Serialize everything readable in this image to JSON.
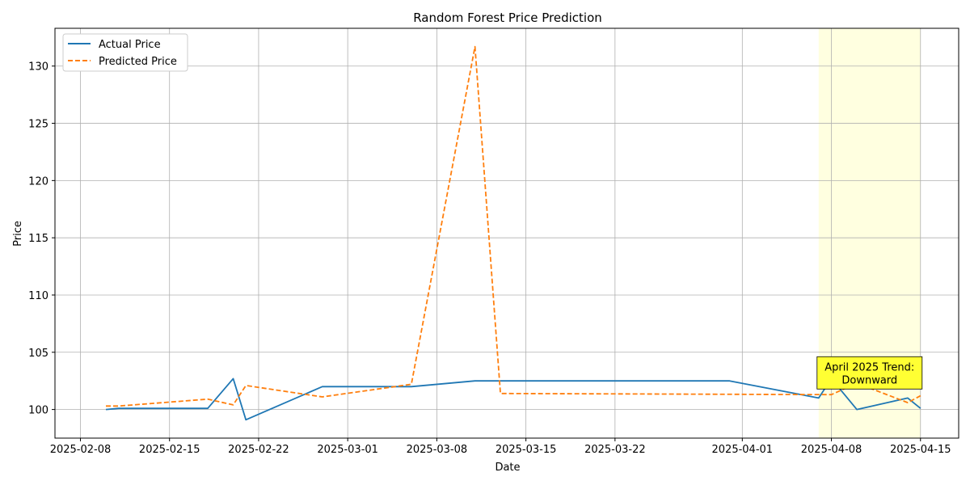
{
  "chart_data": {
    "type": "line",
    "title": "Random Forest Price Prediction",
    "xlabel": "Date",
    "ylabel": "Price",
    "x_ticks": [
      "2025-02-08",
      "2025-02-15",
      "2025-02-22",
      "2025-03-01",
      "2025-03-08",
      "2025-03-15",
      "2025-03-22",
      "2025-04-01",
      "2025-04-08",
      "2025-04-15"
    ],
    "y_ticks": [
      100,
      105,
      110,
      115,
      120,
      125,
      130
    ],
    "xlim": [
      "2025-02-06",
      "2025-04-18"
    ],
    "ylim": [
      97.5,
      133.3
    ],
    "grid": true,
    "legend_position": "top-left",
    "series": [
      {
        "name": "Actual Price",
        "color": "#1f77b4",
        "style": "solid",
        "points": [
          [
            "2025-02-10",
            100.0
          ],
          [
            "2025-02-11",
            100.1
          ],
          [
            "2025-02-18",
            100.1
          ],
          [
            "2025-02-20",
            102.7
          ],
          [
            "2025-02-21",
            99.1
          ],
          [
            "2025-02-27",
            102.0
          ],
          [
            "2025-03-06",
            102.0
          ],
          [
            "2025-03-11",
            102.5
          ],
          [
            "2025-03-31",
            102.5
          ],
          [
            "2025-04-07",
            101.0
          ],
          [
            "2025-04-08",
            102.7
          ],
          [
            "2025-04-10",
            100.0
          ],
          [
            "2025-04-14",
            101.0
          ],
          [
            "2025-04-15",
            100.1
          ]
        ]
      },
      {
        "name": "Predicted Price",
        "color": "#ff7f0e",
        "style": "dashed",
        "points": [
          [
            "2025-02-10",
            100.3
          ],
          [
            "2025-02-11",
            100.3
          ],
          [
            "2025-02-18",
            100.9
          ],
          [
            "2025-02-20",
            100.4
          ],
          [
            "2025-02-21",
            102.1
          ],
          [
            "2025-02-27",
            101.1
          ],
          [
            "2025-03-06",
            102.2
          ],
          [
            "2025-03-11",
            131.7
          ],
          [
            "2025-03-13",
            101.4
          ],
          [
            "2025-04-08",
            101.3
          ],
          [
            "2025-04-10",
            102.3
          ],
          [
            "2025-04-14",
            100.6
          ],
          [
            "2025-04-15",
            101.2
          ]
        ]
      }
    ],
    "highlight": {
      "from": "2025-04-07",
      "to": "2025-04-15",
      "color": "#ffffe0"
    },
    "annotation": {
      "text_line1": "April 2025 Trend:",
      "text_line2": "Downward",
      "date": "2025-04-11",
      "value": 103.2,
      "background": "#ffff33"
    }
  }
}
